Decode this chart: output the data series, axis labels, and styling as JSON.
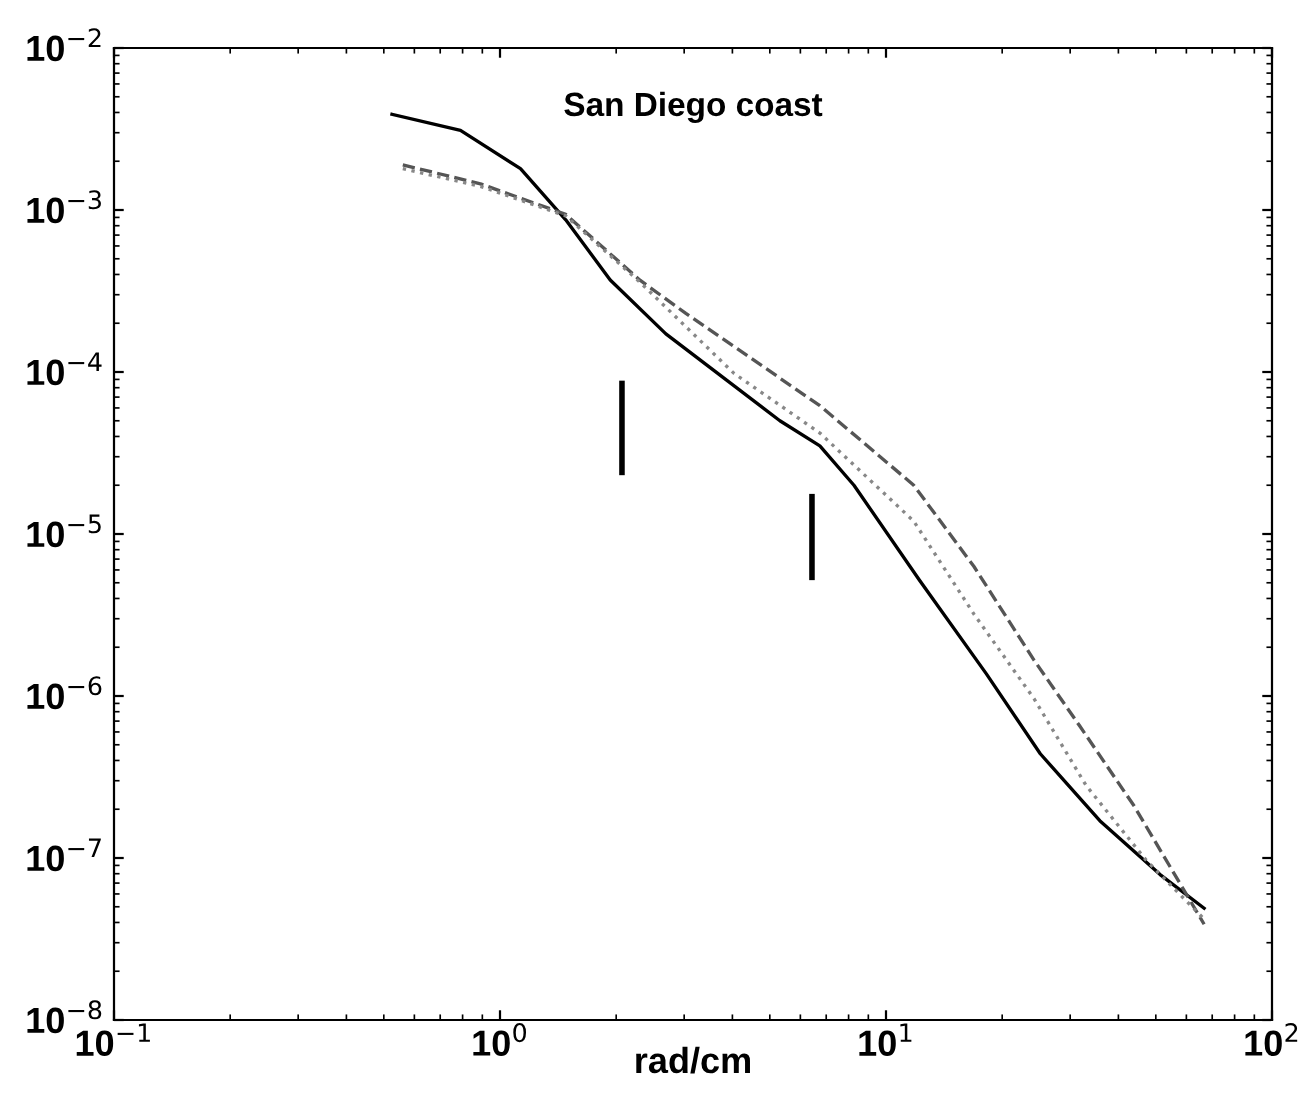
{
  "chart_data": {
    "type": "line",
    "title": "San Diego coast",
    "xlabel": "rad/cm",
    "log": "xy",
    "xlim": [
      0.1,
      100
    ],
    "ylim": [
      1e-08,
      0.01
    ],
    "xticks": [
      {
        "value": 0.1,
        "label": "10$^{−1}$"
      },
      {
        "value": 1,
        "label": "10$^{0}$"
      },
      {
        "value": 10,
        "label": "10$^{1}$"
      },
      {
        "value": 100,
        "label": "10$^{2}$"
      }
    ],
    "yticks": [
      {
        "value": 1e-08,
        "label": "10$^{−8}$"
      },
      {
        "value": 1e-07,
        "label": "10$^{−7}$"
      },
      {
        "value": 1e-06,
        "label": "10$^{−6}$"
      },
      {
        "value": 1e-05,
        "label": "10$^{−5}$"
      },
      {
        "value": 0.0001,
        "label": "10$^{−4}$"
      },
      {
        "value": 0.001,
        "label": "10$^{−3}$"
      },
      {
        "value": 0.01,
        "label": "10$^{−2}$"
      }
    ],
    "grid": false,
    "series": [
      {
        "color": "#000000",
        "line_style": "solid",
        "x": [
          0.525,
          0.79,
          1.13,
          1.48,
          1.93,
          2.69,
          5.31,
          6.74,
          8.26,
          12.2,
          18.2,
          25.1,
          35.8,
          51.3,
          66.7
        ],
        "values": [
          0.0039,
          0.0031,
          0.0018,
          0.00087,
          0.00037,
          0.000172,
          5e-05,
          3.5e-05,
          2e-05,
          5.2e-06,
          1.37e-06,
          4.4e-07,
          1.7e-07,
          7.9e-08,
          4.9e-08
        ]
      },
      {
        "color": "#555555",
        "line_style": "dashed",
        "x": [
          0.56,
          0.89,
          1.48,
          2.3,
          3.03,
          6.74,
          11.8,
          16.9,
          24.2,
          31.8,
          43.9,
          66.7
        ],
        "values": [
          0.0019,
          0.00145,
          0.00094,
          0.00037,
          0.00023,
          6.2e-05,
          2e-05,
          6.3e-06,
          1.66e-06,
          6.5e-07,
          2.1e-07,
          3.9e-08
        ]
      },
      {
        "color": "#888888",
        "line_style": "dotted",
        "x": [
          0.56,
          0.89,
          1.48,
          2.3,
          4.04,
          6.74,
          11.8,
          16.9,
          24.2,
          33,
          47.2,
          66.7
        ],
        "values": [
          0.0018,
          0.0014,
          0.00092,
          0.00036,
          9.8e-05,
          4.2e-05,
          1.2e-05,
          3.2e-06,
          9.6e-07,
          2.8e-07,
          9.7e-08,
          4.2e-08
        ]
      },
      {
        "color": "#000000",
        "line_style": "solid",
        "x": [
          2.07,
          2.07
        ],
        "values": [
          8.5e-05,
          2.4e-05
        ]
      },
      {
        "color": "#000000",
        "line_style": "solid",
        "x": [
          6.43,
          6.43
        ],
        "values": [
          1.7e-05,
          5.4e-06
        ]
      }
    ]
  }
}
